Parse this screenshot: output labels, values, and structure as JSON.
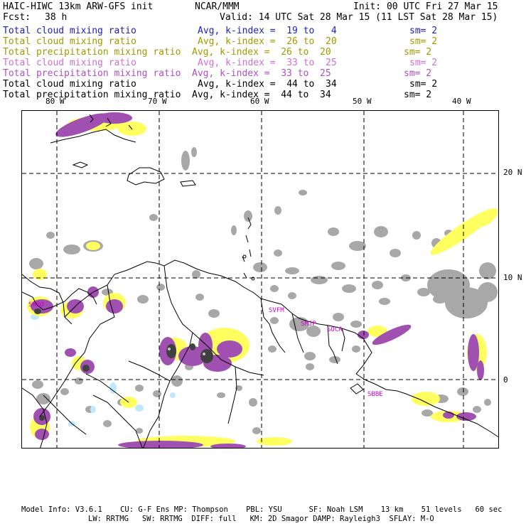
{
  "header": {
    "model_title": "HAIC-HIWC 13km ARW-GFS init",
    "org": "NCAR/MMM",
    "init": "Init: 00 UTC Fri 27 Mar 15",
    "fcst_label": "Fcst:",
    "fcst_value": "38 h",
    "valid": "Valid: 14 UTC Sat 28 Mar 15 (11 LST Sat 28 Mar 15)"
  },
  "legend": [
    {
      "field": "Total cloud mixing ratio",
      "avg": "Avg, k-index =  19 to   4",
      "sm": "sm= 2",
      "color": "#2020c0"
    },
    {
      "field": "Total cloud mixing ratio",
      "avg": "Avg, k-index =  26 to  20",
      "sm": "sm= 2",
      "color": "#a09a00"
    },
    {
      "field": "Total precipitation mixing ratio",
      "avg": "Avg, k-index =  26 to  20",
      "sm": "sm= 2",
      "color": "#a09a00"
    },
    {
      "field": "Total cloud mixing ratio",
      "avg": "Avg, k-index =  33 to  25",
      "sm": "sm= 2",
      "color": "#d070d0"
    },
    {
      "field": "Total precipitation mixing ratio",
      "avg": "Avg, k-index =  33 to  25",
      "sm": "sm= 2",
      "color": "#b050c0"
    },
    {
      "field": "Total cloud mixing ratio",
      "avg": "Avg, k-index =  44 to  34",
      "sm": "sm= 2",
      "color": "#000000"
    },
    {
      "field": "Total precipitation mixing ratio",
      "avg": "Avg, k-index =  44 to  34",
      "sm": "sm= 2",
      "color": "#000000"
    }
  ],
  "map": {
    "lon_labels": [
      "80 W",
      "70 W",
      "60 W",
      "50 W",
      "40 W"
    ],
    "lat_labels": [
      "20 N",
      "10 N",
      "0"
    ],
    "stations": [
      "SKBO",
      "SVFM",
      "SMJP",
      "SOCA",
      "SBBE"
    ],
    "colors": {
      "gray": "#a8a8a8",
      "yellow": "#ffff60",
      "purple": "#a050b0",
      "light_blue": "#c0e8ff",
      "dark": "#404040",
      "station": "#cc00cc"
    }
  },
  "footer": {
    "line1": "Model Info: V3.6.1    CU: G-F Ens MP: Thompson    PBL: YSU      SF: Noah LSM    13 km    51 levels   60 sec",
    "line2": "LW: RRTMG   SW: RRTMG  DIFF: full   KM: 2D Smagor DAMP: Rayleigh3  SFLAY: M-O"
  }
}
